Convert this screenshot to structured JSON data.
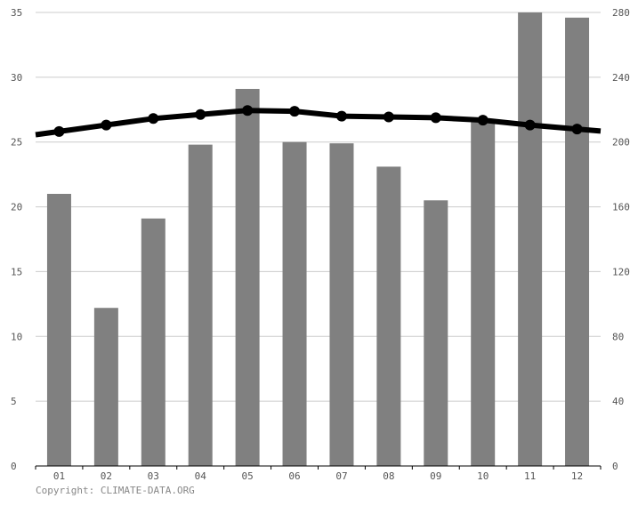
{
  "chart_data": {
    "type": "bar",
    "categories": [
      "01",
      "02",
      "03",
      "04",
      "05",
      "06",
      "07",
      "08",
      "09",
      "10",
      "11",
      "12"
    ],
    "series": [
      {
        "type": "bar",
        "axis": "left",
        "values": [
          21.0,
          12.2,
          19.1,
          24.8,
          29.1,
          25.0,
          24.9,
          23.1,
          20.5,
          26.6,
          35.0,
          34.6
        ],
        "color": "#808080"
      },
      {
        "type": "line",
        "axis": "right",
        "values": [
          206.5,
          210.5,
          214.5,
          217.0,
          219.5,
          219.0,
          216.0,
          215.5,
          215.0,
          213.5,
          210.5,
          208.0
        ],
        "color": "#000000"
      }
    ],
    "y_left": {
      "range": [
        0,
        35
      ],
      "ticks": [
        "0",
        "5",
        "10",
        "15",
        "20",
        "25",
        "30",
        "35"
      ]
    },
    "y_right": {
      "range": [
        0,
        280
      ],
      "ticks": [
        "0",
        "40",
        "80",
        "120",
        "160",
        "200",
        "240",
        "280"
      ]
    },
    "grid": true,
    "legend": "none"
  },
  "footer": {
    "copyright": "Copyright: CLIMATE-DATA.ORG"
  }
}
